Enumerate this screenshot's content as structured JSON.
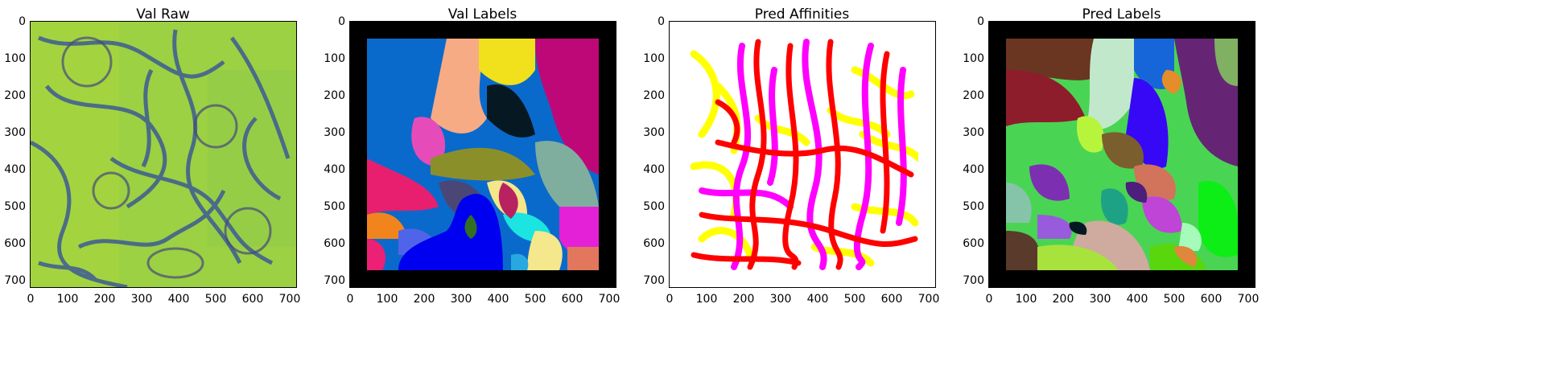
{
  "figure": {
    "panels": [
      {
        "id": "val-raw",
        "title": "Val Raw",
        "colormap": "viridis"
      },
      {
        "id": "val-labels",
        "title": "Val Labels",
        "colormap": "random-labels"
      },
      {
        "id": "pred-affinities",
        "title": "Pred Affinities",
        "colormap": "affinity-rgb"
      },
      {
        "id": "pred-labels",
        "title": "Pred Labels",
        "colormap": "random-labels"
      }
    ],
    "axis": {
      "xticks": [
        "0",
        "100",
        "200",
        "300",
        "400",
        "500",
        "600",
        "700"
      ],
      "yticks": [
        "0",
        "100",
        "200",
        "300",
        "400",
        "500",
        "600",
        "700"
      ],
      "xlim": [
        0,
        724
      ],
      "ylim": [
        724,
        0
      ],
      "padding_region": [
        46,
        678
      ]
    },
    "colors": {
      "viridis_bg": "#9bd142",
      "membrane": "#3d5b94",
      "black_pad": "#000000",
      "affinity_red": "#ff0000",
      "affinity_magenta": "#ff00ff",
      "affinity_yellow": "#ffff00"
    }
  }
}
